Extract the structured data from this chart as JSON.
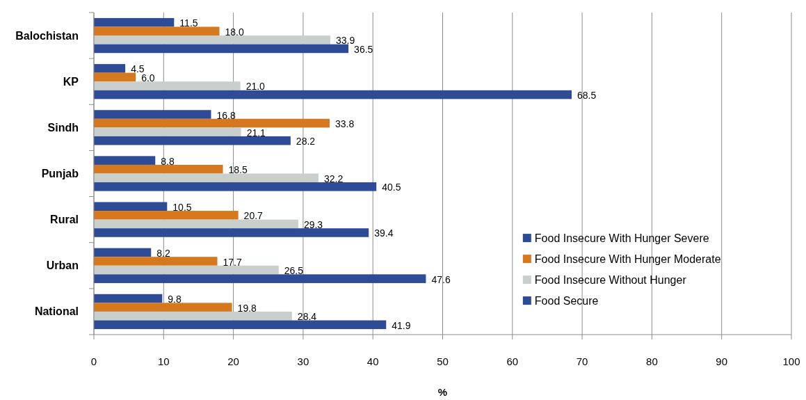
{
  "chart_data": {
    "type": "bar",
    "orientation": "horizontal",
    "categories": [
      "Balochistan",
      "KP",
      "Sindh",
      "Punjab",
      "Rural",
      "Urban",
      "National"
    ],
    "series": [
      {
        "name": "Food Insecure With Hunger Severe",
        "color": "#2e4b95",
        "values": [
          11.5,
          4.5,
          16.8,
          8.8,
          10.5,
          8.2,
          9.8
        ],
        "value_labels": [
          "11.5",
          "4.5",
          "16.8",
          "8.8",
          "10.5",
          "8.2",
          "9.8"
        ]
      },
      {
        "name": "Food Insecure With Hunger Moderate",
        "color": "#d6791e",
        "values": [
          18.0,
          6.0,
          33.8,
          18.5,
          20.7,
          17.7,
          19.8
        ],
        "value_labels": [
          "18.0",
          "6.0",
          "33.8",
          "18.5",
          "20.7",
          "17.7",
          "19.8"
        ]
      },
      {
        "name": "Food Insecure Without Hunger",
        "color": "#c9cfcd",
        "values": [
          33.9,
          21.0,
          21.1,
          32.2,
          29.3,
          26.5,
          28.4
        ],
        "value_labels": [
          "33.9",
          "21.0",
          "21.1",
          "32.2",
          "29.3",
          "26.5",
          "28.4"
        ]
      },
      {
        "name": "Food Secure",
        "color": "#2e4b95",
        "values": [
          36.5,
          68.5,
          28.2,
          40.5,
          39.4,
          47.6,
          41.9
        ],
        "value_labels": [
          "36.5",
          "68.5",
          "28.2",
          "40.5",
          "39.4",
          "47.6",
          "41.9"
        ]
      }
    ],
    "xlim": [
      0,
      100
    ],
    "xticks": [
      0,
      10,
      20,
      30,
      40,
      50,
      60,
      70,
      80,
      90,
      100
    ],
    "xlabel": "%",
    "grid": "x",
    "legend": "right"
  }
}
